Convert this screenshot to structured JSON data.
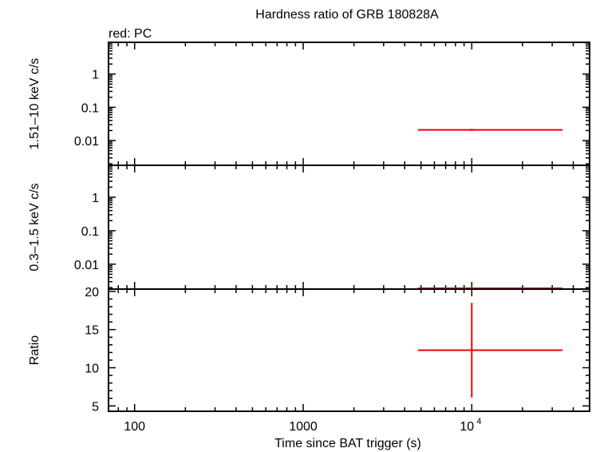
{
  "chart_data": {
    "type": "scatter",
    "title": "Hardness ratio of GRB 180828A",
    "subtitle": "red: PC",
    "xlabel": "Time since BAT trigger (s)",
    "xscale": "log",
    "xlim": [
      70,
      50000
    ],
    "x_ticks": [
      {
        "value": 100,
        "label": "100"
      },
      {
        "value": 1000,
        "label": "1000"
      },
      {
        "value": 10000,
        "label": "10",
        "exp": "4"
      }
    ],
    "colors": {
      "pc": "#ee0000",
      "axis": "#000000"
    },
    "panels": [
      {
        "name": "hard",
        "ylabel": "1.51–10 keV c/s",
        "yscale": "log",
        "ylim": [
          0.0018,
          9
        ],
        "y_ticks": [
          {
            "value": 1,
            "label": "1"
          },
          {
            "value": 0.1,
            "label": "0.1"
          },
          {
            "value": 0.01,
            "label": "0.01"
          }
        ],
        "series": [
          {
            "color": "#ee0000",
            "points": [
              {
                "x": 10000,
                "x_lo": 4800,
                "x_hi": 34500,
                "y": 0.021,
                "y_lo": 0.0195,
                "y_hi": 0.0225
              }
            ]
          }
        ]
      },
      {
        "name": "soft",
        "ylabel": "0.3–1.5 keV c/s",
        "yscale": "log",
        "ylim": [
          0.0018,
          9
        ],
        "y_ticks": [
          {
            "value": 1,
            "label": "1"
          },
          {
            "value": 0.1,
            "label": "0.1"
          },
          {
            "value": 0.01,
            "label": "0.01"
          }
        ],
        "series": [
          {
            "color": "#ee0000",
            "points": [
              {
                "x": 10000,
                "x_lo": 4800,
                "x_hi": 34500,
                "y": 0.0019,
                "y_lo": 0.0018,
                "y_hi": 0.0021
              }
            ]
          }
        ]
      },
      {
        "name": "ratio",
        "ylabel": "Ratio",
        "yscale": "linear",
        "ylim": [
          4.3,
          20.3
        ],
        "y_ticks": [
          {
            "value": 5,
            "label": "5"
          },
          {
            "value": 10,
            "label": "10"
          },
          {
            "value": 15,
            "label": "15"
          },
          {
            "value": 20,
            "label": "20"
          }
        ],
        "series": [
          {
            "color": "#ee0000",
            "points": [
              {
                "x": 10000,
                "x_lo": 4800,
                "x_hi": 34500,
                "y": 12.3,
                "y_lo": 6.1,
                "y_hi": 18.5
              }
            ]
          }
        ]
      }
    ]
  }
}
